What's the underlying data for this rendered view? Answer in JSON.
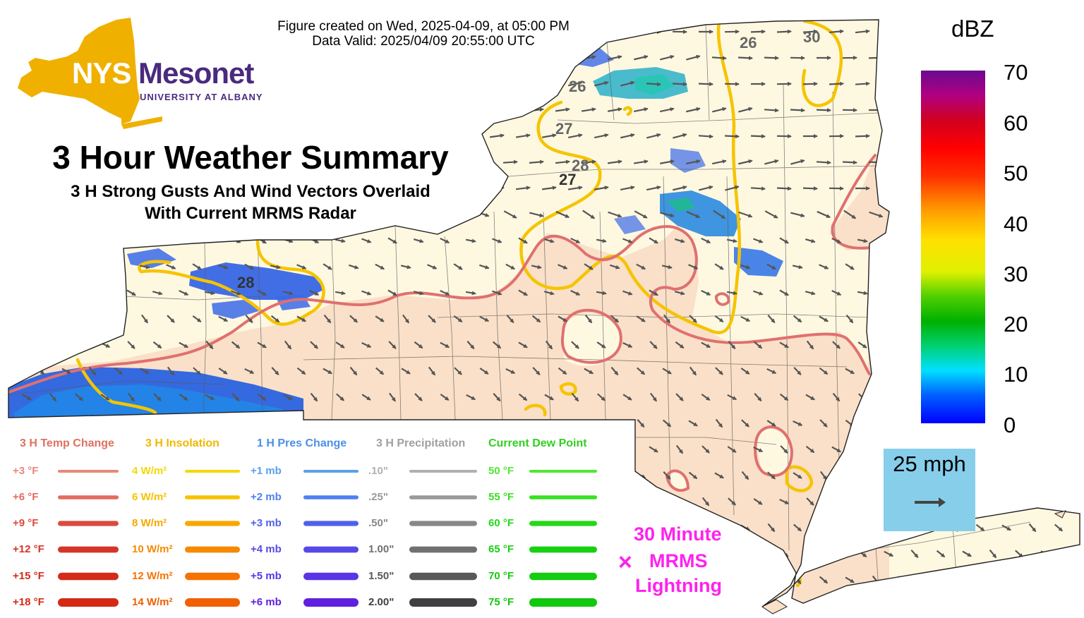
{
  "header": {
    "created": "Figure created on Wed, 2025-04-09, at 05:00 PM",
    "valid": "Data Valid: 2025/04/09 20:55:00 UTC"
  },
  "logo": {
    "nys": "NYS",
    "mesonet": "Mesonet",
    "university": "UNIVERSITY AT ALBANY",
    "gold": "#f0b000",
    "purple": "#4a2a7f"
  },
  "title": {
    "main": "3 Hour Weather Summary",
    "sub1": "3 H Strong Gusts And Wind Vectors Overlaid",
    "sub2": "With Current MRMS Radar"
  },
  "colorbar": {
    "unit": "dBZ",
    "labels": [
      "70",
      "60",
      "50",
      "40",
      "30",
      "20",
      "10",
      "0"
    ]
  },
  "wind_key": {
    "label": "25 mph",
    "bg": "#87ceeb"
  },
  "lightning": {
    "line1": "30 Minute",
    "line2": "MRMS",
    "line3": "Lightning",
    "symbol": "×",
    "color": "#ff22ee"
  },
  "map": {
    "land_color": "#fff8e1",
    "warm_color": "#fae0c8",
    "contour_labels": [
      "26",
      "30",
      "26",
      "27",
      "28",
      "27",
      "28"
    ]
  },
  "legend": [
    {
      "header": "3 H Temp Change",
      "header_color": "#e07060",
      "items": [
        {
          "label": "+3 °F",
          "color": "#e8877a"
        },
        {
          "label": "+6 °F",
          "color": "#e36b5e"
        },
        {
          "label": "+9 °F",
          "color": "#dc4a3e"
        },
        {
          "label": "+12 °F",
          "color": "#d43528"
        },
        {
          "label": "+15 °F",
          "color": "#d52a1a"
        },
        {
          "label": "+18 °F",
          "color": "#d42a14"
        }
      ]
    },
    {
      "header": "3 H Insolation",
      "header_color": "#f0b800",
      "items": [
        {
          "label": "4 W/m²",
          "color": "#f5d800"
        },
        {
          "label": "6 W/m²",
          "color": "#f7c200"
        },
        {
          "label": "8 W/m²",
          "color": "#f6a800"
        },
        {
          "label": "10 W/m²",
          "color": "#f58a00"
        },
        {
          "label": "12 W/m²",
          "color": "#f57300"
        },
        {
          "label": "14 W/m²",
          "color": "#f06000"
        }
      ]
    },
    {
      "header": "1 H Pres Change",
      "header_color": "#4a90e8",
      "items": [
        {
          "label": "+1 mb",
          "color": "#5aa0ea"
        },
        {
          "label": "+2 mb",
          "color": "#4f80f0"
        },
        {
          "label": "+3 mb",
          "color": "#5060ec"
        },
        {
          "label": "+4 mb",
          "color": "#5748e8"
        },
        {
          "label": "+5 mb",
          "color": "#5a35e6"
        },
        {
          "label": "+6 mb",
          "color": "#6020e0"
        }
      ]
    },
    {
      "header": "3 H Precipitation",
      "header_color": "#a0a0a0",
      "items": [
        {
          "label": ".10\"",
          "color": "#b0b0b0"
        },
        {
          "label": ".25\"",
          "color": "#999999"
        },
        {
          "label": ".50\"",
          "color": "#888888"
        },
        {
          "label": "1.00\"",
          "color": "#707070"
        },
        {
          "label": "1.50\"",
          "color": "#585858"
        },
        {
          "label": "2.00\"",
          "color": "#404040"
        }
      ]
    },
    {
      "header": "Current Dew Point",
      "header_color": "#30d020",
      "items": [
        {
          "label": "50 °F",
          "color": "#50e830"
        },
        {
          "label": "55 °F",
          "color": "#38e020"
        },
        {
          "label": "60 °F",
          "color": "#25d818"
        },
        {
          "label": "65 °F",
          "color": "#18d012"
        },
        {
          "label": "70 °F",
          "color": "#14cc10"
        },
        {
          "label": "75 °F",
          "color": "#10c80c"
        }
      ]
    }
  ]
}
